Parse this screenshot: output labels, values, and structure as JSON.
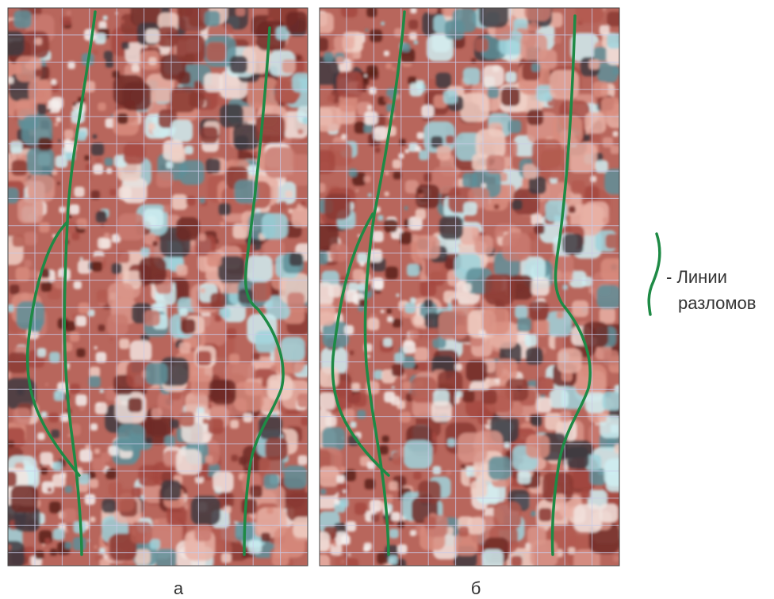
{
  "panels": [
    {
      "label": "а"
    },
    {
      "label": "б"
    }
  ],
  "legend": {
    "line1": "- Линии",
    "line2": "разломов"
  }
}
